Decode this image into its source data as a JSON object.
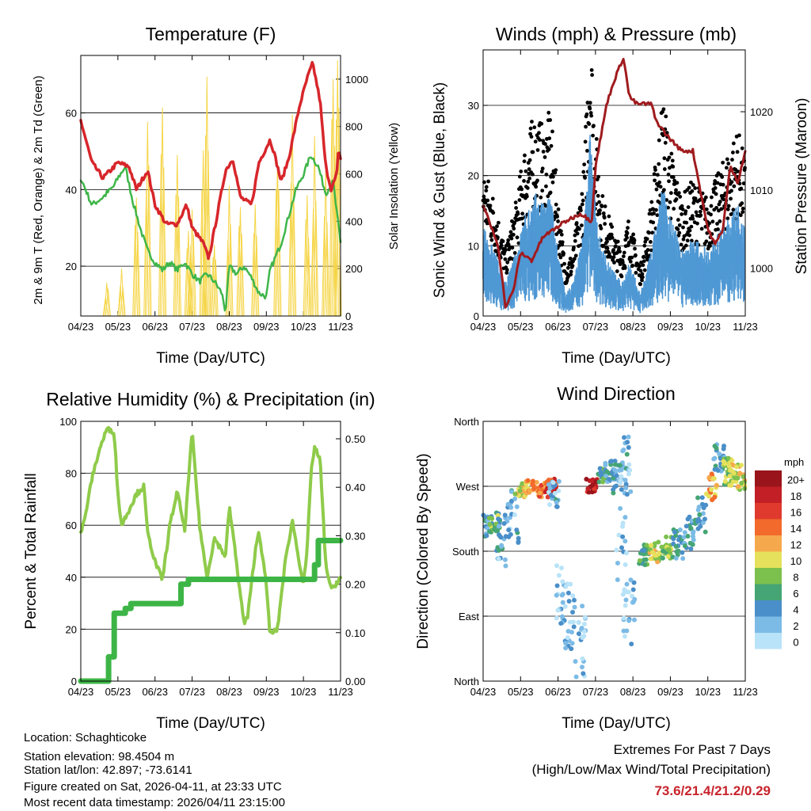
{
  "months": [
    "04/23",
    "05/23",
    "06/23",
    "07/23",
    "08/23",
    "09/23",
    "10/23",
    "11/23"
  ],
  "colors": {
    "temp": "#d7262b",
    "dew": "#3fb64a",
    "solar": "#f5d547",
    "wind": "#4f98d4",
    "gust": "#000000",
    "pressure": "#a01b1e",
    "rh": "#8fcb4a",
    "precip": "#3db546"
  },
  "chart_data": [
    {
      "type": "line",
      "title": "Temperature (F)",
      "xlabel": "Time (Day/UTC)",
      "ylabel": "2m & 9m T (Red, Orange) & 2m Td (Green)",
      "ylabel_right": "Solar Insolation (Yellow)",
      "ylim": [
        7,
        75
      ],
      "ylim_right": [
        0,
        1100
      ],
      "yticks": [
        20,
        40,
        60
      ],
      "yticks_right": [
        0,
        200,
        400,
        600,
        800,
        1000
      ],
      "x_units": "months since 04/23",
      "series": [
        {
          "name": "2m T",
          "points": [
            [
              0,
              58
            ],
            [
              0.3,
              47
            ],
            [
              0.6,
              43
            ],
            [
              1.0,
              47
            ],
            [
              1.3,
              46
            ],
            [
              1.5,
              40
            ],
            [
              1.8,
              45
            ],
            [
              2.0,
              36
            ],
            [
              2.3,
              31
            ],
            [
              2.6,
              31
            ],
            [
              2.85,
              36
            ],
            [
              3.0,
              30
            ],
            [
              3.3,
              26
            ],
            [
              3.45,
              22
            ],
            [
              3.65,
              32
            ],
            [
              3.9,
              45
            ],
            [
              4.1,
              48
            ],
            [
              4.3,
              38
            ],
            [
              4.6,
              36
            ],
            [
              4.8,
              47
            ],
            [
              5.1,
              53
            ],
            [
              5.2,
              50
            ],
            [
              5.4,
              42
            ],
            [
              5.6,
              48
            ],
            [
              5.9,
              62
            ],
            [
              6.1,
              69
            ],
            [
              6.25,
              73
            ],
            [
              6.45,
              63
            ],
            [
              6.6,
              46
            ],
            [
              6.75,
              40
            ],
            [
              6.9,
              44
            ],
            [
              6.95,
              51
            ],
            [
              7.0,
              48
            ]
          ]
        },
        {
          "name": "2m Td",
          "points": [
            [
              0,
              43
            ],
            [
              0.3,
              36
            ],
            [
              0.6,
              38
            ],
            [
              0.9,
              41
            ],
            [
              1.0,
              43
            ],
            [
              1.2,
              46
            ],
            [
              1.4,
              37
            ],
            [
              1.6,
              30
            ],
            [
              1.8,
              24
            ],
            [
              2.0,
              21
            ],
            [
              2.2,
              19
            ],
            [
              2.4,
              21
            ],
            [
              2.6,
              19
            ],
            [
              2.8,
              21
            ],
            [
              3.0,
              18
            ],
            [
              3.2,
              16
            ],
            [
              3.4,
              18
            ],
            [
              3.6,
              16
            ],
            [
              3.8,
              13
            ],
            [
              3.9,
              8
            ],
            [
              4.0,
              20
            ],
            [
              4.2,
              18
            ],
            [
              4.4,
              20
            ],
            [
              4.6,
              17
            ],
            [
              4.8,
              13
            ],
            [
              5.0,
              12
            ],
            [
              5.1,
              19
            ],
            [
              5.4,
              26
            ],
            [
              5.6,
              33
            ],
            [
              5.8,
              40
            ],
            [
              6.0,
              44
            ],
            [
              6.2,
              49
            ],
            [
              6.4,
              46
            ],
            [
              6.6,
              39
            ],
            [
              6.8,
              42
            ],
            [
              7.0,
              26
            ]
          ]
        },
        {
          "name": "Solar",
          "peaks": [
            [
              0.7,
              140
            ],
            [
              1.1,
              200
            ],
            [
              1.5,
              500
            ],
            [
              1.8,
              820
            ],
            [
              2.2,
              880
            ],
            [
              2.6,
              680
            ],
            [
              2.9,
              360
            ],
            [
              3.0,
              450
            ],
            [
              3.3,
              700
            ],
            [
              3.4,
              1010
            ],
            [
              3.6,
              300
            ],
            [
              4.0,
              550
            ],
            [
              4.3,
              460
            ],
            [
              4.7,
              470
            ],
            [
              5.3,
              650
            ],
            [
              5.7,
              850
            ],
            [
              6.1,
              510
            ],
            [
              6.3,
              760
            ],
            [
              6.6,
              620
            ],
            [
              6.8,
              1000
            ],
            [
              6.92,
              1080
            ]
          ]
        }
      ]
    },
    {
      "type": "line",
      "title": "Winds (mph) & Pressure (mb)",
      "xlabel": "Time (Day/UTC)",
      "ylabel": "Sonic Wind & Gust (Blue, Black)",
      "ylabel_right": "Station Pressure (Maroon)",
      "ylim": [
        0,
        37.9
      ],
      "ylim_right": [
        993.9,
        1027.9
      ],
      "yticks": [
        0,
        10,
        20,
        30
      ],
      "yticks_right": [
        1000,
        1010,
        1020
      ],
      "series": [
        {
          "name": "Wind",
          "points": [
            [
              0,
              8
            ],
            [
              0.3,
              6
            ],
            [
              0.6,
              3
            ],
            [
              0.9,
              6
            ],
            [
              1.1,
              9
            ],
            [
              1.4,
              11
            ],
            [
              1.6,
              10
            ],
            [
              1.8,
              11
            ],
            [
              2.0,
              6
            ],
            [
              2.2,
              2
            ],
            [
              2.4,
              3
            ],
            [
              2.7,
              8
            ],
            [
              2.85,
              17
            ],
            [
              3.0,
              10
            ],
            [
              3.2,
              6
            ],
            [
              3.5,
              4
            ],
            [
              3.7,
              3
            ],
            [
              3.9,
              5
            ],
            [
              4.2,
              2
            ],
            [
              4.5,
              6
            ],
            [
              4.8,
              12
            ],
            [
              5.0,
              9
            ],
            [
              5.3,
              6
            ],
            [
              5.6,
              7
            ],
            [
              6.0,
              6
            ],
            [
              6.4,
              8
            ],
            [
              6.8,
              10
            ],
            [
              7.0,
              8
            ]
          ]
        },
        {
          "name": "Pressure",
          "points": [
            [
              0,
              1008
            ],
            [
              0.4,
              1003
            ],
            [
              0.6,
              995
            ],
            [
              0.8,
              997
            ],
            [
              1.0,
              1002
            ],
            [
              1.3,
              1001
            ],
            [
              1.6,
              1004
            ],
            [
              1.9,
              1005
            ],
            [
              2.2,
              1006
            ],
            [
              2.6,
              1007
            ],
            [
              2.9,
              1006
            ],
            [
              3.0,
              1013
            ],
            [
              3.3,
              1021
            ],
            [
              3.5,
              1024
            ],
            [
              3.75,
              1027
            ],
            [
              3.9,
              1022
            ],
            [
              4.1,
              1021
            ],
            [
              4.5,
              1021
            ],
            [
              4.6,
              1019
            ],
            [
              4.9,
              1017
            ],
            [
              5.3,
              1015
            ],
            [
              5.6,
              1015
            ],
            [
              6.0,
              1005
            ],
            [
              6.2,
              1003
            ],
            [
              6.4,
              1005
            ],
            [
              6.6,
              1013
            ],
            [
              6.8,
              1011
            ],
            [
              7.0,
              1015
            ]
          ]
        }
      ]
    },
    {
      "type": "line",
      "title": "Relative Humidity (%) & Precipitation (in)",
      "xlabel": "Time (Day/UTC)",
      "ylabel": "Percent & Total Rainfall",
      "ylim": [
        0,
        100
      ],
      "ylim_right": [
        0,
        0.536
      ],
      "yticks": [
        0,
        20,
        40,
        60,
        80,
        100
      ],
      "yticks_right": [
        "0.00",
        "0.10",
        "0.20",
        "0.30",
        "0.40",
        "0.50"
      ],
      "series": [
        {
          "name": "RH",
          "points": [
            [
              0,
              57
            ],
            [
              0.1,
              62
            ],
            [
              0.3,
              78
            ],
            [
              0.5,
              89
            ],
            [
              0.7,
              97
            ],
            [
              0.9,
              96
            ],
            [
              1.0,
              72
            ],
            [
              1.1,
              60
            ],
            [
              1.3,
              66
            ],
            [
              1.5,
              72
            ],
            [
              1.7,
              75
            ],
            [
              1.8,
              57
            ],
            [
              2.0,
              46
            ],
            [
              2.2,
              39
            ],
            [
              2.4,
              60
            ],
            [
              2.6,
              73
            ],
            [
              2.8,
              58
            ],
            [
              3.0,
              96
            ],
            [
              3.2,
              60
            ],
            [
              3.4,
              40
            ],
            [
              3.6,
              55
            ],
            [
              3.9,
              48
            ],
            [
              4.0,
              67
            ],
            [
              4.1,
              57
            ],
            [
              4.2,
              45
            ],
            [
              4.4,
              22
            ],
            [
              4.5,
              25
            ],
            [
              4.7,
              50
            ],
            [
              4.8,
              58
            ],
            [
              5.0,
              37
            ],
            [
              5.1,
              18
            ],
            [
              5.3,
              20
            ],
            [
              5.5,
              45
            ],
            [
              5.7,
              62
            ],
            [
              5.9,
              45
            ],
            [
              6.0,
              37
            ],
            [
              6.1,
              50
            ],
            [
              6.2,
              80
            ],
            [
              6.3,
              90
            ],
            [
              6.45,
              85
            ],
            [
              6.6,
              45
            ],
            [
              6.75,
              35
            ],
            [
              7.0,
              40
            ]
          ]
        },
        {
          "name": "Precip",
          "points": [
            [
              0,
              0
            ],
            [
              0.7,
              0
            ],
            [
              0.75,
              0.05
            ],
            [
              0.9,
              0.14
            ],
            [
              1.2,
              0.15
            ],
            [
              1.35,
              0.16
            ],
            [
              2.6,
              0.16
            ],
            [
              2.7,
              0.2
            ],
            [
              2.9,
              0.21
            ],
            [
              6.0,
              0.21
            ],
            [
              6.3,
              0.24
            ],
            [
              6.4,
              0.29
            ],
            [
              7.0,
              0.29
            ]
          ]
        }
      ]
    },
    {
      "type": "scatter",
      "title": "Wind Direction",
      "xlabel": "Time (Day/UTC)",
      "ylabel": "Direction (Colored By Speed)",
      "ylim": [
        0,
        360
      ],
      "yticks": [
        "North",
        "East",
        "South",
        "West",
        "North"
      ],
      "legend_title": "mph",
      "legend": [
        "0",
        "2",
        "4",
        "6",
        "8",
        "10",
        "12",
        "14",
        "16",
        "18",
        "20+"
      ],
      "legend_colors": [
        "#b9e3f8",
        "#7cbbe6",
        "#4a8fc9",
        "#45a574",
        "#7cc04e",
        "#e6e15c",
        "#f6a94c",
        "#f26a2c",
        "#e03a2e",
        "#c21f26",
        "#9a141b"
      ],
      "clusters_x_dir_spread_speed": [
        [
          0.1,
          215,
          15,
          4
        ],
        [
          0.3,
          220,
          15,
          7
        ],
        [
          0.5,
          195,
          40,
          3
        ],
        [
          0.8,
          230,
          40,
          3
        ],
        [
          1.0,
          265,
          10,
          10
        ],
        [
          1.3,
          270,
          10,
          12
        ],
        [
          1.6,
          265,
          10,
          14
        ],
        [
          1.8,
          270,
          10,
          16
        ],
        [
          1.9,
          260,
          20,
          3
        ],
        [
          2.1,
          120,
          40,
          2
        ],
        [
          2.3,
          90,
          50,
          2
        ],
        [
          2.6,
          60,
          60,
          1
        ],
        [
          2.9,
          270,
          10,
          19
        ],
        [
          3.2,
          285,
          10,
          6
        ],
        [
          3.4,
          290,
          15,
          4
        ],
        [
          3.6,
          280,
          20,
          3
        ],
        [
          3.7,
          200,
          80,
          2
        ],
        [
          3.8,
          300,
          40,
          3
        ],
        [
          3.9,
          100,
          50,
          2
        ],
        [
          4.3,
          175,
          15,
          6
        ],
        [
          4.6,
          180,
          15,
          10
        ],
        [
          4.9,
          185,
          15,
          8
        ],
        [
          5.2,
          190,
          20,
          4
        ],
        [
          5.5,
          205,
          25,
          4
        ],
        [
          5.8,
          230,
          25,
          4
        ],
        [
          6.1,
          270,
          20,
          12
        ],
        [
          6.3,
          310,
          20,
          3
        ],
        [
          6.5,
          290,
          20,
          8
        ],
        [
          6.7,
          285,
          20,
          9
        ],
        [
          6.9,
          280,
          20,
          10
        ]
      ]
    }
  ],
  "info": {
    "location": "Location: Schaghticoke",
    "elevation": "Station elevation: 98.4504 m",
    "latlon": "Station lat/lon: 42.897; -73.6141",
    "created": "Figure created on Sat, 2026-04-11, at 23:33 UTC",
    "recent": "Most recent data timestamp: 2026/04/11 23:15:00"
  },
  "extremes": {
    "title": "Extremes For Past 7 Days",
    "subtitle": "(High/Low/Max Wind/Total Precipitation)",
    "values": "73.6/21.4/21.2/0.29"
  }
}
